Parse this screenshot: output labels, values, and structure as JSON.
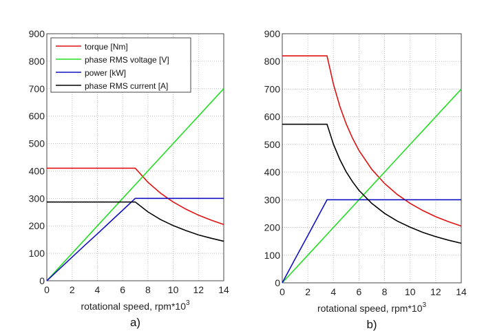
{
  "chart_data": [
    {
      "type": "line",
      "panel_label": "a)",
      "xlabel": "rotational speed, rpm*10",
      "xlabel_superscript": "3",
      "xlim": [
        0,
        14
      ],
      "ylim": [
        0,
        900
      ],
      "xticks": [
        "0",
        "2",
        "4",
        "6",
        "8",
        "10",
        "12",
        "14"
      ],
      "yticks": [
        "0",
        "100",
        "200",
        "300",
        "400",
        "500",
        "600",
        "700",
        "800",
        "900"
      ],
      "grid": true,
      "legend": "top-left",
      "x": [
        0,
        1,
        2,
        3,
        4,
        5,
        6,
        7,
        8,
        9,
        10,
        11,
        12,
        13,
        14
      ],
      "series": [
        {
          "name": "torque [Nm]",
          "color": "#e01010",
          "values": [
            410,
            410,
            410,
            410,
            410,
            410,
            410,
            410,
            359,
            319,
            287,
            261,
            239,
            221,
            205
          ]
        },
        {
          "name": "phase RMS voltage [V]",
          "color": "#22dd22",
          "values": [
            0,
            50,
            100,
            150,
            200,
            250,
            300,
            350,
            400,
            450,
            500,
            550,
            600,
            650,
            700
          ]
        },
        {
          "name": "power [kW]",
          "color": "#1010c0",
          "values": [
            0,
            43,
            86,
            129,
            171,
            214,
            257,
            300,
            300,
            300,
            300,
            300,
            300,
            300,
            300
          ]
        },
        {
          "name": "phase RMS current [A]",
          "color": "#000000",
          "values": [
            287,
            287,
            287,
            287,
            287,
            287,
            287,
            287,
            251,
            223,
            201,
            183,
            167,
            155,
            144
          ]
        }
      ]
    },
    {
      "type": "line",
      "panel_label": "b)",
      "xlabel": "rotational speed, rpm*10",
      "xlabel_superscript": "3",
      "xlim": [
        0,
        14
      ],
      "ylim": [
        0,
        900
      ],
      "xticks": [
        "0",
        "2",
        "4",
        "6",
        "8",
        "10",
        "12",
        "14"
      ],
      "yticks": [
        "0",
        "100",
        "200",
        "300",
        "400",
        "500",
        "600",
        "700",
        "800",
        "900"
      ],
      "grid": true,
      "x": [
        0,
        1,
        2,
        3,
        3.5,
        4,
        4.5,
        5,
        5.5,
        6,
        7,
        8,
        9,
        10,
        11,
        12,
        13,
        14
      ],
      "series": [
        {
          "color": "#e01010",
          "values": [
            820,
            820,
            820,
            820,
            820,
            718,
            638,
            574,
            522,
            478,
            410,
            359,
            319,
            287,
            261,
            239,
            221,
            205
          ]
        },
        {
          "color": "#22dd22",
          "values": [
            0,
            50,
            100,
            150,
            175,
            200,
            225,
            250,
            275,
            300,
            350,
            400,
            450,
            500,
            550,
            600,
            650,
            700
          ]
        },
        {
          "color": "#1010c0",
          "values": [
            0,
            86,
            171,
            257,
            300,
            300,
            300,
            300,
            300,
            300,
            300,
            300,
            300,
            300,
            300,
            300,
            300,
            300
          ]
        },
        {
          "color": "#000000",
          "values": [
            573,
            573,
            573,
            573,
            573,
            501,
            446,
            401,
            365,
            334,
            287,
            251,
            223,
            201,
            182,
            167,
            154,
            143
          ]
        }
      ]
    }
  ]
}
